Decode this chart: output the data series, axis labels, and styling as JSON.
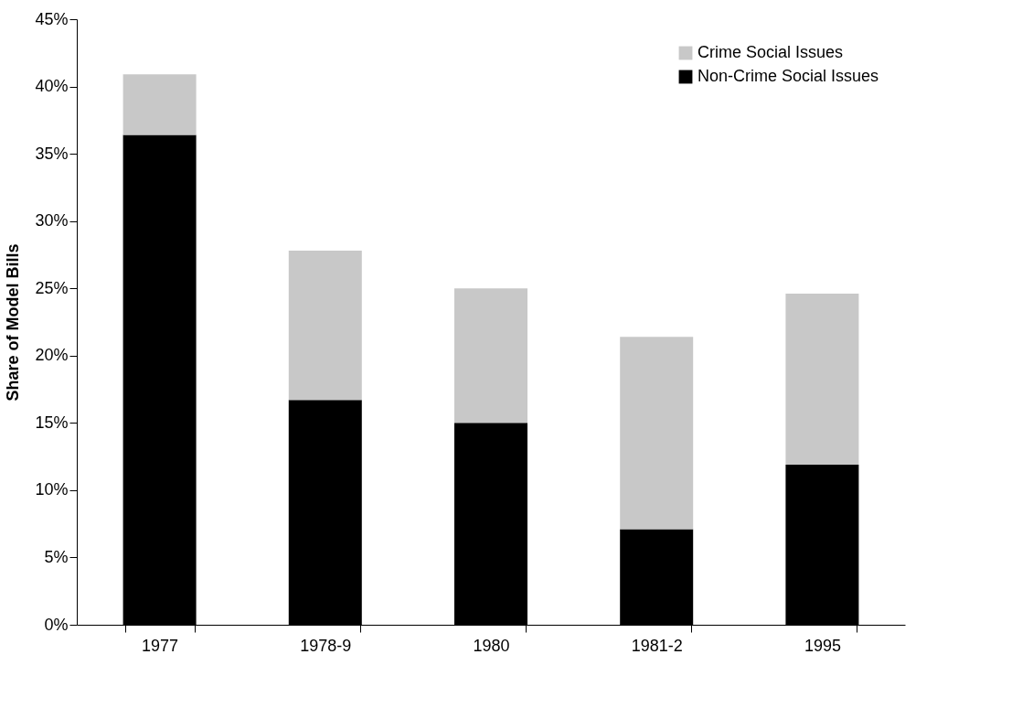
{
  "chart_data": {
    "type": "bar",
    "stacked": true,
    "ylabel": "Share of Model Bills",
    "categories": [
      "1977",
      "1978-9",
      "1980",
      "1981-2",
      "1995"
    ],
    "series": [
      {
        "name": "Non-Crime Social Issues",
        "color": "#000000",
        "values": [
          36.4,
          16.7,
          15.0,
          7.1,
          11.9
        ]
      },
      {
        "name": "Crime Social Issues",
        "color": "#c8c8c8",
        "values": [
          4.5,
          11.1,
          10.0,
          14.3,
          12.7
        ]
      }
    ],
    "ylim": [
      0,
      45
    ],
    "yticks": [
      {
        "value": 0,
        "label": "0%"
      },
      {
        "value": 5,
        "label": "5%"
      },
      {
        "value": 10,
        "label": "10%"
      },
      {
        "value": 15,
        "label": "15%"
      },
      {
        "value": 20,
        "label": "20%"
      },
      {
        "value": 25,
        "label": "25%"
      },
      {
        "value": 30,
        "label": "30%"
      },
      {
        "value": 35,
        "label": "35%"
      },
      {
        "value": 40,
        "label": "40%"
      },
      {
        "value": 45,
        "label": "45%"
      }
    ],
    "grid": false,
    "legend": "top right"
  }
}
